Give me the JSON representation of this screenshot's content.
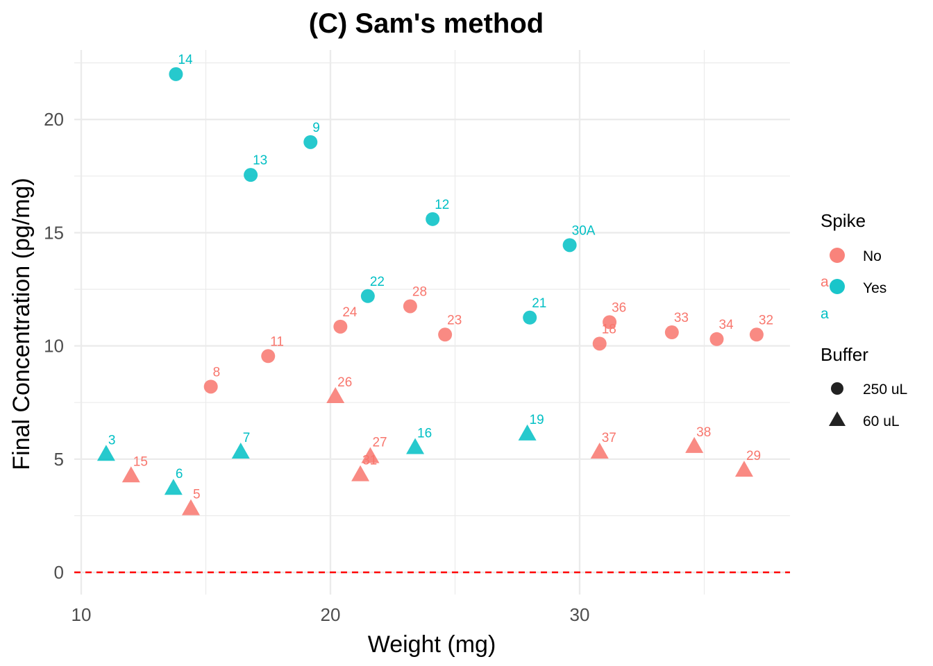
{
  "chart_data": {
    "type": "scatter",
    "title": "(C) Sam's method",
    "xlabel": "Weight (mg)",
    "ylabel": "Final Concentration (pg/mg)",
    "xlim": [
      10,
      38.5
    ],
    "ylim": [
      -1,
      23.4
    ],
    "x_ticks": [
      10,
      20,
      30
    ],
    "y_ticks": [
      0,
      5,
      10,
      15,
      20
    ],
    "x_tick_labels": [
      "10",
      "20",
      "30"
    ],
    "y_tick_labels": [
      "0",
      "5",
      "10",
      "15",
      "20"
    ],
    "grid": true,
    "reference_line": {
      "y": 0,
      "style": "dashed",
      "color": "#ff0000"
    },
    "colors": {
      "No": "#f8766d",
      "Yes": "#00bfc4"
    },
    "legend": {
      "placement": "right",
      "spike": {
        "title": "Spike",
        "entries": [
          "No",
          "Yes"
        ],
        "key_glyph": "a"
      },
      "buffer": {
        "title": "Buffer",
        "entries": [
          "250 uL",
          "60 uL"
        ]
      }
    },
    "points": [
      {
        "label": "14",
        "x": 13.8,
        "y": 22.0,
        "spike": "Yes",
        "buffer": "250 uL"
      },
      {
        "label": "13",
        "x": 16.8,
        "y": 17.55,
        "spike": "Yes",
        "buffer": "250 uL"
      },
      {
        "label": "9",
        "x": 19.2,
        "y": 19.0,
        "spike": "Yes",
        "buffer": "250 uL"
      },
      {
        "label": "12",
        "x": 24.1,
        "y": 15.6,
        "spike": "Yes",
        "buffer": "250 uL"
      },
      {
        "label": "30A",
        "x": 29.6,
        "y": 14.45,
        "spike": "Yes",
        "buffer": "250 uL"
      },
      {
        "label": "22",
        "x": 21.5,
        "y": 12.2,
        "spike": "Yes",
        "buffer": "250 uL"
      },
      {
        "label": "21",
        "x": 28.0,
        "y": 11.25,
        "spike": "Yes",
        "buffer": "250 uL"
      },
      {
        "label": "28",
        "x": 23.2,
        "y": 11.75,
        "spike": "No",
        "buffer": "250 uL"
      },
      {
        "label": "24",
        "x": 20.4,
        "y": 10.85,
        "spike": "No",
        "buffer": "250 uL"
      },
      {
        "label": "23",
        "x": 24.6,
        "y": 10.5,
        "spike": "No",
        "buffer": "250 uL"
      },
      {
        "label": "36",
        "x": 31.2,
        "y": 11.05,
        "spike": "No",
        "buffer": "250 uL"
      },
      {
        "label": "18",
        "x": 30.8,
        "y": 10.1,
        "spike": "No",
        "buffer": "250 uL"
      },
      {
        "label": "33",
        "x": 33.7,
        "y": 10.6,
        "spike": "No",
        "buffer": "250 uL"
      },
      {
        "label": "34",
        "x": 35.5,
        "y": 10.3,
        "spike": "No",
        "buffer": "250 uL"
      },
      {
        "label": "32",
        "x": 37.1,
        "y": 10.5,
        "spike": "No",
        "buffer": "250 uL"
      },
      {
        "label": "11",
        "x": 17.5,
        "y": 9.55,
        "spike": "No",
        "buffer": "250 uL"
      },
      {
        "label": "8",
        "x": 15.2,
        "y": 8.2,
        "spike": "No",
        "buffer": "250 uL"
      },
      {
        "label": "26",
        "x": 20.2,
        "y": 7.75,
        "spike": "No",
        "buffer": "60 uL"
      },
      {
        "label": "3",
        "x": 11.0,
        "y": 5.2,
        "spike": "Yes",
        "buffer": "60 uL"
      },
      {
        "label": "15",
        "x": 12.0,
        "y": 4.25,
        "spike": "No",
        "buffer": "60 uL"
      },
      {
        "label": "6",
        "x": 13.7,
        "y": 3.7,
        "spike": "Yes",
        "buffer": "60 uL"
      },
      {
        "label": "5",
        "x": 14.4,
        "y": 2.8,
        "spike": "No",
        "buffer": "60 uL"
      },
      {
        "label": "7",
        "x": 16.4,
        "y": 5.3,
        "spike": "Yes",
        "buffer": "60 uL"
      },
      {
        "label": "27",
        "x": 21.6,
        "y": 5.1,
        "spike": "No",
        "buffer": "60 uL"
      },
      {
        "label": "31",
        "x": 21.2,
        "y": 4.3,
        "spike": "No",
        "buffer": "60 uL"
      },
      {
        "label": "16",
        "x": 23.4,
        "y": 5.5,
        "spike": "Yes",
        "buffer": "60 uL"
      },
      {
        "label": "19",
        "x": 27.9,
        "y": 6.1,
        "spike": "Yes",
        "buffer": "60 uL"
      },
      {
        "label": "37",
        "x": 30.8,
        "y": 5.3,
        "spike": "No",
        "buffer": "60 uL"
      },
      {
        "label": "38",
        "x": 34.6,
        "y": 5.55,
        "spike": "No",
        "buffer": "60 uL"
      },
      {
        "label": "29",
        "x": 36.6,
        "y": 4.5,
        "spike": "No",
        "buffer": "60 uL"
      }
    ]
  }
}
